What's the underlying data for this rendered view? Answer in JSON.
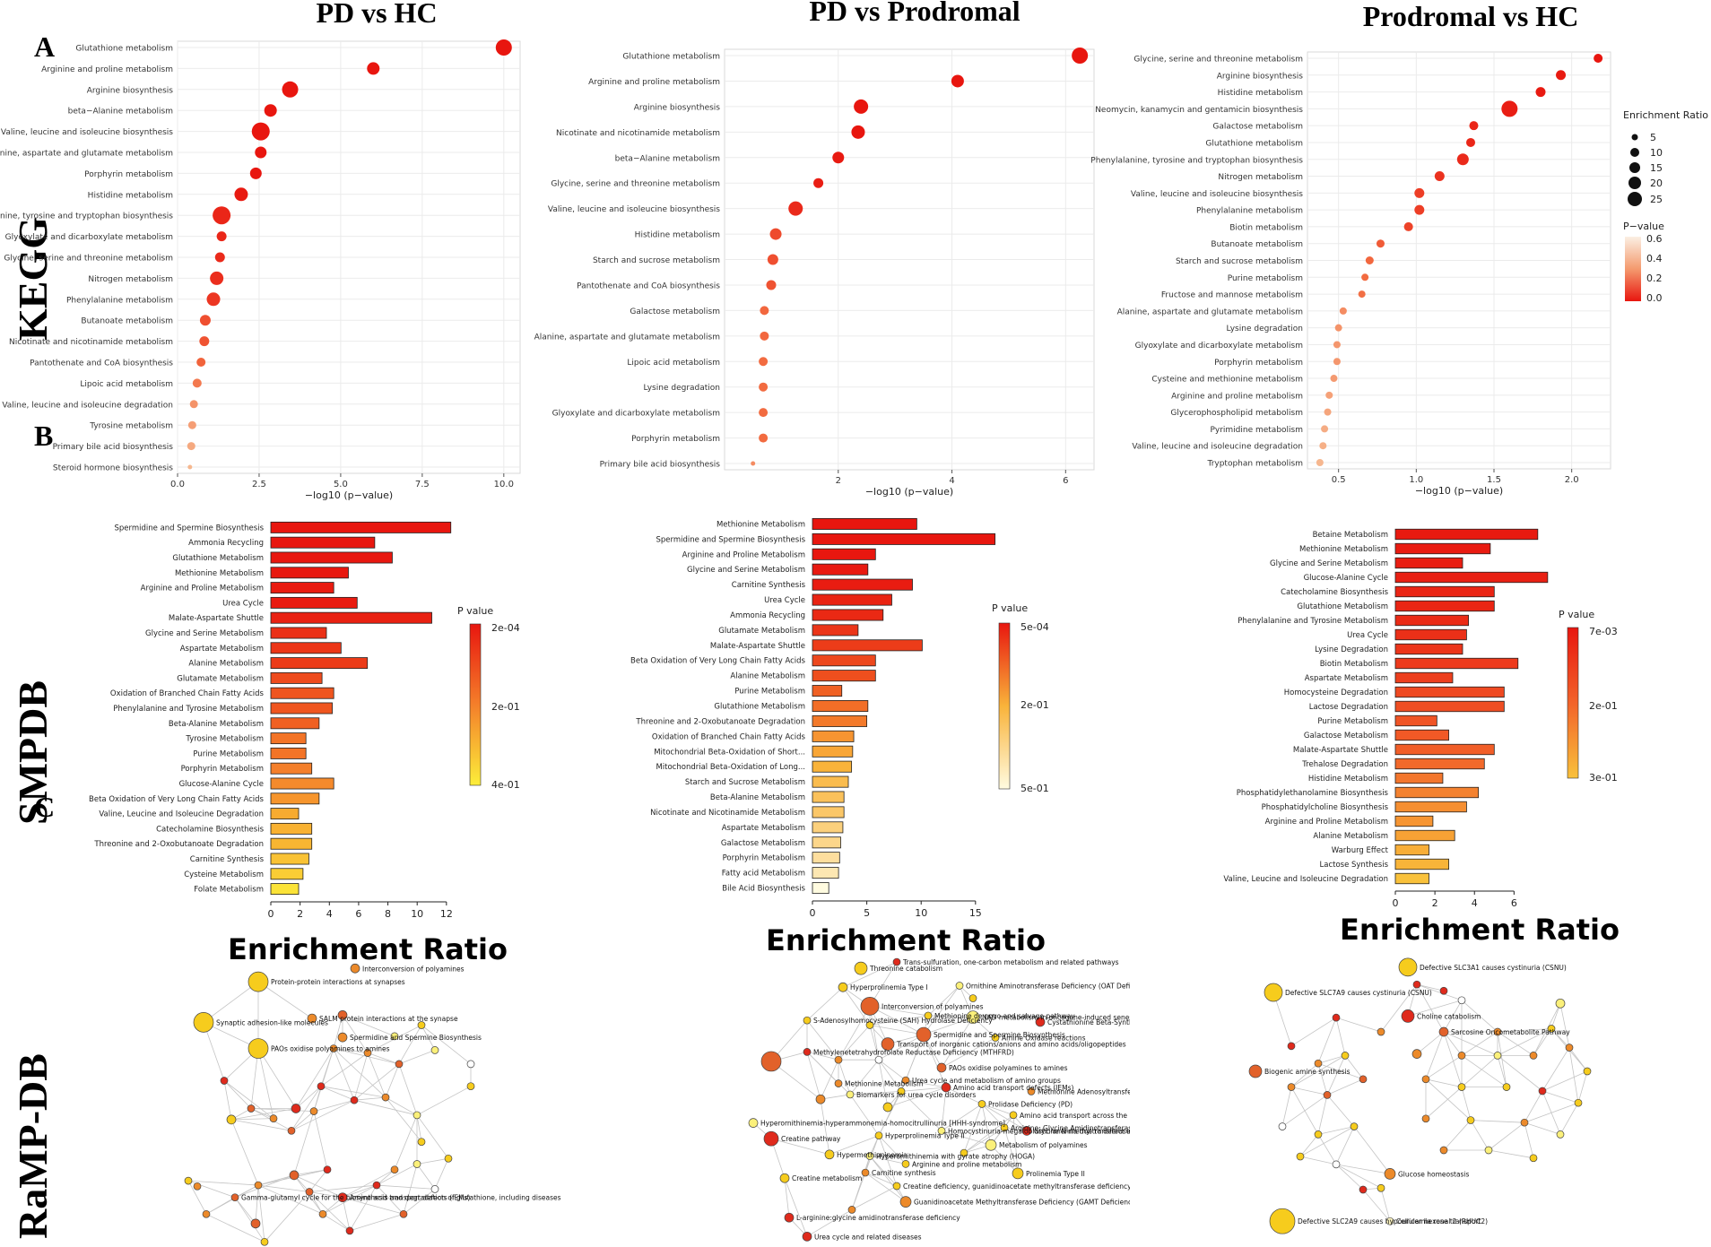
{
  "titles": [
    "PD vs HC",
    "PD vs Prodromal",
    "Prodromal vs HC"
  ],
  "panel_letters": [
    "A",
    "B",
    "C"
  ],
  "row_labels": [
    "KEGG",
    "SMPDB",
    "RaMP-DB"
  ],
  "enrichment_ratio_label": "Enrichment Ratio",
  "legends": {
    "kegg_size_title": "Enrichment Ratio",
    "kegg_size_values": [
      "5",
      "10",
      "15",
      "20",
      "25"
    ],
    "kegg_color_title": "P−value",
    "kegg_color_ticks": [
      "0.6",
      "0.4",
      "0.2",
      "0.0"
    ],
    "smpdb_color_title": "P value",
    "smpdb1_ticks": [
      "2e-04",
      "2e-01",
      "4e-01"
    ],
    "smpdb2_ticks": [
      "5e-04",
      "2e-01",
      "5e-01"
    ],
    "smpdb3_ticks": [
      "7e-03",
      "2e-01",
      "3e-01"
    ]
  },
  "colors": {
    "high_sig": "#e8160f",
    "mid": "#f4a340",
    "low_sig": "#f7e4c6",
    "bar_low": "#fcdc2c"
  },
  "chart_data": [
    {
      "id": "kegg1",
      "type": "scatter",
      "title": "PD vs HC",
      "xlabel": "−log10 (p−value)",
      "xlim": [
        0,
        10.5
      ],
      "xticks": [
        0.0,
        2.5,
        5.0,
        7.5,
        10.0
      ],
      "xtick_labels": [
        "0.0",
        "2.5",
        "5.0",
        "7.5",
        "10.0"
      ],
      "categories": [
        "Glutathione metabolism",
        "Arginine and proline metabolism",
        "Arginine biosynthesis",
        "beta−Alanine metabolism",
        "Valine, leucine and isoleucine biosynthesis",
        "Alanine, aspartate and glutamate metabolism",
        "Porphyrin metabolism",
        "Histidine metabolism",
        "Phenylalanine, tyrosine and tryptophan biosynthesis",
        "Glyoxylate and dicarboxylate metabolism",
        "Glycine, serine and threonine metabolism",
        "Nitrogen metabolism",
        "Phenylalanine metabolism",
        "Butanoate metabolism",
        "Nicotinate and nicotinamide metabolism",
        "Pantothenate and CoA biosynthesis",
        "Lipoic acid metabolism",
        "Valine, leucine and isoleucine degradation",
        "Tyrosine metabolism",
        "Primary bile acid biosynthesis",
        "Steroid hormone biosynthesis"
      ],
      "x": [
        10.0,
        6.0,
        3.45,
        2.85,
        2.55,
        2.55,
        2.4,
        1.95,
        1.35,
        1.35,
        1.3,
        1.2,
        1.1,
        0.85,
        0.82,
        0.72,
        0.6,
        0.5,
        0.45,
        0.42,
        0.38
      ],
      "size": [
        14,
        10,
        14,
        10,
        16,
        9,
        9,
        11,
        16,
        7,
        7,
        11,
        11,
        8,
        7,
        6,
        6,
        5,
        5,
        5,
        1
      ],
      "pvalue": [
        0.0,
        0.0,
        0.0,
        0.0,
        0.0,
        0.0,
        0.0,
        0.01,
        0.04,
        0.04,
        0.05,
        0.06,
        0.08,
        0.14,
        0.15,
        0.19,
        0.25,
        0.32,
        0.35,
        0.38,
        0.42
      ]
    },
    {
      "id": "kegg2",
      "type": "scatter",
      "title": "PD vs Prodromal",
      "xlabel": "−log10 (p−value)",
      "xlim": [
        0.0,
        6.5
      ],
      "xticks": [
        2,
        4,
        6
      ],
      "xtick_labels": [
        "2",
        "4",
        "6"
      ],
      "categories": [
        "Glutathione metabolism",
        "Arginine and proline metabolism",
        "Arginine biosynthesis",
        "Nicotinate and nicotinamide metabolism",
        "beta−Alanine metabolism",
        "Glycine, serine and threonine metabolism",
        "Valine, leucine and isoleucine biosynthesis",
        "Histidine metabolism",
        "Starch and sucrose metabolism",
        "Pantothenate and CoA biosynthesis",
        "Galactose metabolism",
        "Alanine, aspartate and glutamate metabolism",
        "Lipoic acid metabolism",
        "Lysine degradation",
        "Glyoxylate and dicarboxylate metabolism",
        "Porphyrin metabolism",
        "Primary bile acid biosynthesis"
      ],
      "x": [
        6.25,
        4.1,
        2.4,
        2.35,
        2.0,
        1.65,
        1.25,
        0.9,
        0.85,
        0.82,
        0.7,
        0.7,
        0.68,
        0.68,
        0.68,
        0.68,
        0.5
      ],
      "size": [
        14,
        10,
        12,
        11,
        9,
        7,
        12,
        9,
        8,
        7,
        6,
        6,
        6,
        6,
        6,
        6,
        1
      ],
      "pvalue": [
        0.0,
        0.0,
        0.0,
        0.0,
        0.01,
        0.02,
        0.05,
        0.13,
        0.14,
        0.15,
        0.2,
        0.2,
        0.21,
        0.21,
        0.21,
        0.21,
        0.3
      ]
    },
    {
      "id": "kegg3",
      "type": "scatter",
      "title": "Prodromal vs HC",
      "xlabel": "−log10 (p−value)",
      "xlim": [
        0.3,
        2.25
      ],
      "xticks": [
        0.5,
        1.0,
        1.5,
        2.0
      ],
      "xtick_labels": [
        "0.5",
        "1.0",
        "1.5",
        "2.0"
      ],
      "categories": [
        "Glycine, serine and threonine metabolism",
        "Arginine biosynthesis",
        "Histidine metabolism",
        "Neomycin, kanamycin and gentamicin biosynthesis",
        "Galactose metabolism",
        "Glutathione metabolism",
        "Phenylalanine, tyrosine and tryptophan biosynthesis",
        "Nitrogen metabolism",
        "Valine, leucine and isoleucine biosynthesis",
        "Phenylalanine metabolism",
        "Biotin metabolism",
        "Butanoate metabolism",
        "Starch and sucrose metabolism",
        "Purine metabolism",
        "Fructose and mannose metabolism",
        "Alanine, aspartate and glutamate metabolism",
        "Lysine degradation",
        "Glyoxylate and dicarboxylate metabolism",
        "Porphyrin metabolism",
        "Cysteine and methionine metabolism",
        "Arginine and proline metabolism",
        "Glycerophospholipid metabolism",
        "Pyrimidine metabolism",
        "Valine, leucine and isoleucine degradation",
        "Tryptophan metabolism"
      ],
      "x": [
        2.17,
        1.93,
        1.8,
        1.6,
        1.37,
        1.35,
        1.3,
        1.15,
        1.02,
        1.02,
        0.95,
        0.77,
        0.7,
        0.67,
        0.65,
        0.53,
        0.5,
        0.49,
        0.49,
        0.47,
        0.44,
        0.43,
        0.41,
        0.4,
        0.38
      ],
      "size": [
        6,
        7,
        7,
        14,
        6,
        6,
        9,
        7,
        7,
        7,
        6,
        5,
        5,
        4,
        4,
        4,
        4,
        4,
        4,
        4,
        4,
        4,
        4,
        4,
        4
      ],
      "pvalue": [
        0.0,
        0.01,
        0.01,
        0.02,
        0.04,
        0.04,
        0.05,
        0.07,
        0.1,
        0.1,
        0.11,
        0.17,
        0.2,
        0.21,
        0.22,
        0.3,
        0.32,
        0.33,
        0.33,
        0.34,
        0.36,
        0.37,
        0.39,
        0.4,
        0.42
      ]
    },
    {
      "id": "smpdb1",
      "type": "bar",
      "orientation": "horizontal",
      "title": "PD vs HC",
      "xlabel": "Enrichment Ratio",
      "xlim": [
        0,
        12.5
      ],
      "xticks": [
        0,
        2,
        4,
        6,
        8,
        10,
        12
      ],
      "xtick_labels": [
        "0",
        "2",
        "4",
        "6",
        "8",
        "10",
        "12"
      ],
      "categories": [
        "Spermidine and Spermine Biosynthesis",
        "Ammonia Recycling",
        "Glutathione Metabolism",
        "Methionine Metabolism",
        "Arginine and Proline Metabolism",
        "Urea Cycle",
        "Malate-Aspartate Shuttle",
        "Glycine and Serine Metabolism",
        "Aspartate Metabolism",
        "Alanine Metabolism",
        "Glutamate Metabolism",
        "Oxidation of Branched Chain Fatty Acids",
        "Phenylalanine and Tyrosine Metabolism",
        "Beta-Alanine Metabolism",
        "Tyrosine Metabolism",
        "Purine Metabolism",
        "Porphyrin Metabolism",
        "Glucose-Alanine Cycle",
        "Beta Oxidation of Very Long Chain Fatty Acids",
        "Valine, Leucine and Isoleucine Degradation",
        "Catecholamine Biosynthesis",
        "Threonine and 2-Oxobutanoate Degradation",
        "Carnitine Synthesis",
        "Cysteine Metabolism",
        "Folate Metabolism"
      ],
      "values": [
        12.3,
        7.1,
        8.3,
        5.3,
        4.3,
        5.9,
        11.0,
        3.8,
        4.8,
        6.6,
        3.5,
        4.3,
        4.2,
        3.3,
        2.4,
        2.4,
        2.8,
        4.3,
        3.3,
        1.9,
        2.8,
        2.8,
        2.6,
        2.2,
        1.9
      ],
      "pvalue": [
        0.0002,
        0.001,
        0.001,
        0.003,
        0.01,
        0.01,
        0.02,
        0.05,
        0.06,
        0.07,
        0.1,
        0.12,
        0.12,
        0.14,
        0.18,
        0.18,
        0.2,
        0.22,
        0.24,
        0.28,
        0.29,
        0.3,
        0.32,
        0.34,
        0.38
      ]
    },
    {
      "id": "smpdb2",
      "type": "bar",
      "orientation": "horizontal",
      "title": "PD vs Prodromal",
      "xlabel": "Enrichment Ratio",
      "xlim": [
        0,
        16.5
      ],
      "xticks": [
        0,
        5,
        10,
        15
      ],
      "xtick_labels": [
        "0",
        "5",
        "10",
        "15"
      ],
      "categories": [
        "Methionine Metabolism",
        "Spermidine and Spermine Biosynthesis",
        "Arginine and Proline Metabolism",
        "Glycine and Serine Metabolism",
        "Carnitine Synthesis",
        "Urea Cycle",
        "Ammonia Recycling",
        "Glutamate Metabolism",
        "Malate-Aspartate Shuttle",
        "Beta Oxidation of Very Long Chain Fatty Acids",
        "Alanine Metabolism",
        "Purine Metabolism",
        "Glutathione Metabolism",
        "Threonine and 2-Oxobutanoate Degradation",
        "Oxidation of Branched Chain Fatty Acids",
        "Mitochondrial Beta-Oxidation of Short...",
        "Mitochondrial Beta-Oxidation of Long...",
        "Starch and Sucrose Metabolism",
        "Beta-Alanine Metabolism",
        "Nicotinate and Nicotinamide Metabolism",
        "Aspartate Metabolism",
        "Galactose Metabolism",
        "Porphyrin Metabolism",
        "Fatty acid Metabolism",
        "Bile Acid Biosynthesis"
      ],
      "values": [
        9.6,
        16.8,
        5.8,
        5.1,
        9.2,
        7.3,
        6.5,
        4.2,
        10.1,
        5.8,
        5.8,
        2.7,
        5.1,
        5.0,
        3.8,
        3.7,
        3.6,
        3.3,
        2.9,
        2.9,
        2.8,
        2.6,
        2.5,
        2.4,
        1.5
      ],
      "pvalue": [
        0.0005,
        0.001,
        0.002,
        0.005,
        0.01,
        0.02,
        0.03,
        0.05,
        0.06,
        0.08,
        0.09,
        0.12,
        0.14,
        0.16,
        0.2,
        0.23,
        0.25,
        0.28,
        0.3,
        0.32,
        0.35,
        0.37,
        0.4,
        0.43,
        0.5
      ]
    },
    {
      "id": "smpdb3",
      "type": "bar",
      "orientation": "horizontal",
      "title": "Prodromal vs HC",
      "xlabel": "Enrichment Ratio",
      "xlim": [
        0,
        6.8
      ],
      "xticks": [
        0,
        2,
        4,
        6
      ],
      "xtick_labels": [
        "0",
        "2",
        "4",
        "6"
      ],
      "categories": [
        "Betaine Metabolism",
        "Methionine Metabolism",
        "Glycine and Serine Metabolism",
        "Glucose-Alanine Cycle",
        "Catecholamine Biosynthesis",
        "Glutathione Metabolism",
        "Phenylalanine and Tyrosine Metabolism",
        "Urea Cycle",
        "Lysine Degradation",
        "Biotin Metabolism",
        "Aspartate Metabolism",
        "Homocysteine Degradation",
        "Lactose Degradation",
        "Purine Metabolism",
        "Galactose Metabolism",
        "Malate-Aspartate Shuttle",
        "Trehalose Degradation",
        "Histidine Metabolism",
        "Phosphatidylethanolamine Biosynthesis",
        "Phosphatidylcholine Biosynthesis",
        "Arginine and Proline Metabolism",
        "Alanine Metabolism",
        "Warburg Effect",
        "Lactose Synthesis",
        "Valine, Leucine and Isoleucine Degradation"
      ],
      "values": [
        7.2,
        4.8,
        3.4,
        7.7,
        5.0,
        5.0,
        3.7,
        3.6,
        3.4,
        6.2,
        2.9,
        5.5,
        5.5,
        2.1,
        2.7,
        5.0,
        4.5,
        2.4,
        4.2,
        3.6,
        1.9,
        3.0,
        1.7,
        2.7,
        1.7
      ],
      "pvalue": [
        0.007,
        0.01,
        0.015,
        0.02,
        0.03,
        0.03,
        0.04,
        0.05,
        0.06,
        0.07,
        0.08,
        0.1,
        0.11,
        0.12,
        0.13,
        0.14,
        0.16,
        0.18,
        0.2,
        0.22,
        0.23,
        0.25,
        0.27,
        0.28,
        0.3
      ]
    }
  ],
  "networks": {
    "net1_labels": [
      "Interconversion of polyamines",
      "Protein-protein interactions at synapses",
      "Synaptic adhesion-like molecules",
      "PAOs oxidise polyamines to amines",
      "SALM protein interactions at the synapse",
      "Spermidine and Spermine Biosynthesis",
      "Gamma-glutamyl cycle for the biosynthesis and degradation of glutathione, including diseases",
      "Amino acid transport defects (IEMs)"
    ],
    "net2_labels": [
      "Threonine catabolism",
      "Trans-sulfuration, one-carbon metabolism and related pathways",
      "Hyperprolinemia Type I",
      "Ornithine Aminotransferase Deficiency (OAT Deficiency)",
      "Interconversion of polyamines",
      "NAD metabolism in oncogene-induced senescence",
      "S-Adenosylhomocysteine (SAH) Hydrolase Deficiency",
      "Cystathionine Beta-Synthase Deficiency",
      "Spermidine and Spermine Biosynthesis",
      "Methionine de novo and salvage pathway",
      "Amine Oxidase reactions",
      "Transport of inorganic cations/anions and amino acids/oligopeptides",
      "PAOs oxidise polyamines to amines",
      "Methylenetetrahydrofolate Reductase Deficiency (MTHFRD)",
      "Amino acid transport defects (IEMs)",
      "Methionine Metabolism",
      "Methionine Adenosyltransferase Deficiency",
      "Prolidase Deficiency (PD)",
      "Amino acid transport across the plasma membrane",
      "Glycine N-methyltransferase Deficiency",
      "Arginine: Glycine Amidinotransferase Deficiency (AGAT Deficiency)",
      "Creatine pathway",
      "Hyperprolinemia Type II",
      "Hypermethioninemia",
      "Metabolism of polyamines",
      "Hyperornithinemia with gyrate atrophy (HOGA)",
      "Arginine and proline metabolism",
      "Carnitine synthesis",
      "Creatine metabolism",
      "Prolinemia Type II",
      "Creatine deficiency, guanidinoacetate methyltransferase deficiency",
      "L-arginine:glycine amidinotransferase deficiency",
      "Guanidinoacetate Methyltransferase Deficiency (GAMT Deficiency)",
      "Urea cycle and related diseases",
      "Hyperornithinemia-hyperammonemia-homocitrullinuria [HHH-syndrome]",
      "Urea cycle and metabolism of amino groups",
      "Biomarkers for urea cycle disorders",
      "Homocystinuria-megaloblastic anemia due to defect in cobalamin metabolism, cblG complementation type"
    ],
    "net3_labels": [
      "Defective SLC3A1 causes cystinuria (CSNU)",
      "Defective SLC7A9 causes cystinuria (CSNU)",
      "Choline catabolism",
      "Sarcosine Oncometabolite Pathway",
      "Biogenic amine synthesis",
      "Glucose homeostasis",
      "Defective SLC2A9 causes hypouricemia renal 2 (RHUC2)",
      "Cellular hexose transport"
    ]
  }
}
